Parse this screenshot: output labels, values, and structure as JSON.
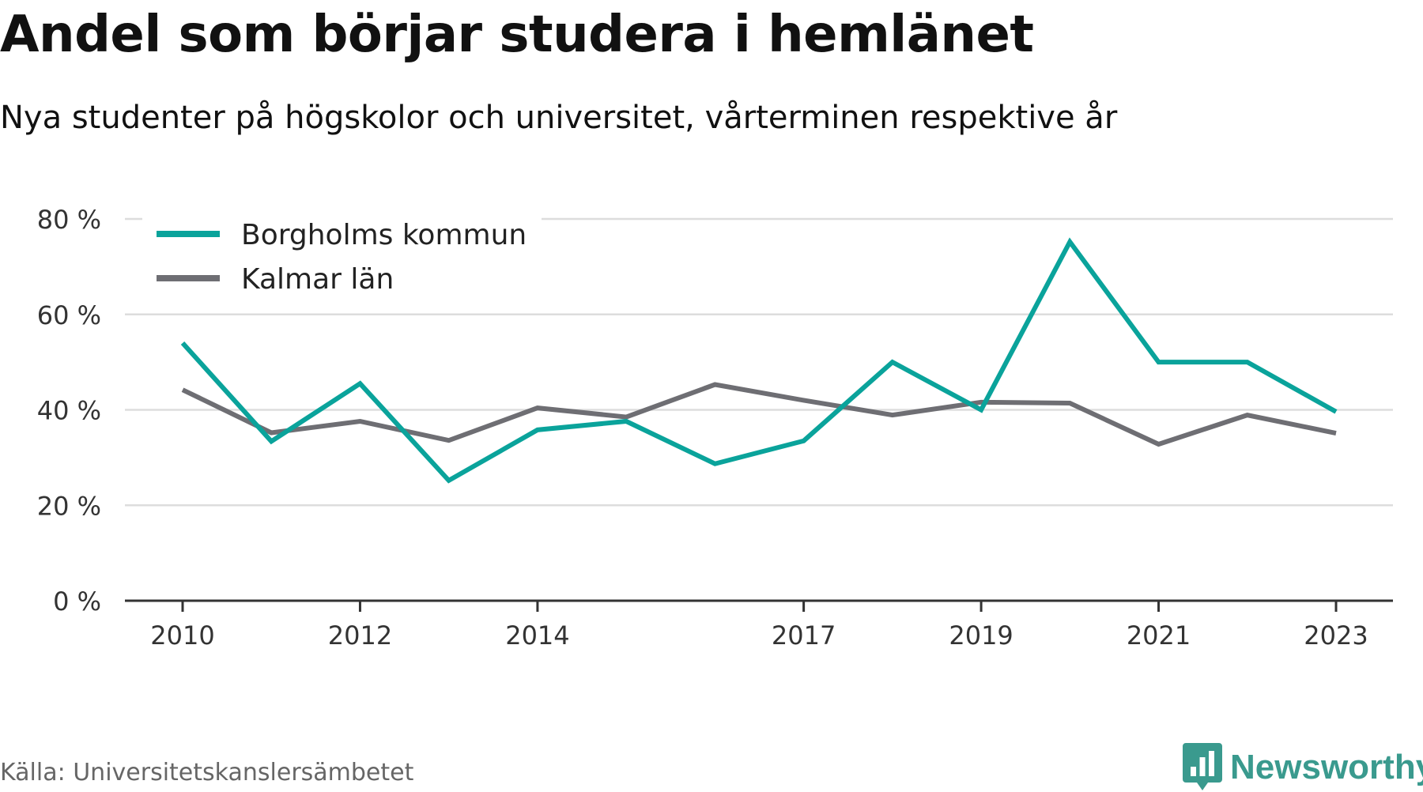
{
  "chart_data": {
    "type": "line",
    "title": "Andel som börjar studera i hemlänet",
    "subtitle": "Nya studenter på högskolor och universitet, vårterminen respektive år",
    "xlabel": "",
    "ylabel": "",
    "x": [
      2010,
      2011,
      2012,
      2013,
      2014,
      2015,
      2016,
      2017,
      2018,
      2019,
      2020,
      2021,
      2022,
      2023
    ],
    "x_ticks": [
      "2010",
      "2012",
      "2014",
      "2017",
      "2019",
      "2021",
      "2023"
    ],
    "x_tick_values": [
      2010,
      2012,
      2014,
      2017,
      2019,
      2021,
      2023
    ],
    "ylim": [
      0,
      80
    ],
    "y_ticks": [
      0,
      20,
      40,
      60,
      80
    ],
    "y_tick_labels": [
      "0 %",
      "20 %",
      "40 %",
      "60 %",
      "80 %"
    ],
    "grid": true,
    "legend_position": "top-left",
    "series": [
      {
        "name": "Borgholms kommun",
        "color": "#0aa39b",
        "values": [
          54,
          33.4,
          45.5,
          25.2,
          35.8,
          37.6,
          28.7,
          33.5,
          50,
          40,
          75.2,
          50,
          50,
          39.6
        ]
      },
      {
        "name": "Kalmar län",
        "color": "#6e6e73",
        "values": [
          44.2,
          35.2,
          37.6,
          33.6,
          40.4,
          38.5,
          45.3,
          42,
          38.9,
          41.6,
          41.4,
          32.8,
          38.9,
          35.1
        ]
      }
    ]
  },
  "footer": {
    "source": "Källa: Universitetskanslersämbetet",
    "logo_text": "Newsworthy",
    "logo_color": "#3a9a8e"
  }
}
